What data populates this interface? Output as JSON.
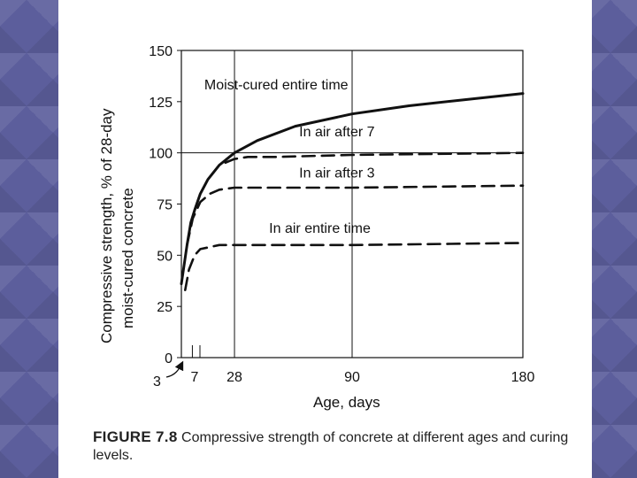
{
  "caption": {
    "label": "FIGURE 7.8",
    "text": "Compressive strength of concrete at different ages and curing levels."
  },
  "chart_data": {
    "type": "line",
    "xlabel": "Age, days",
    "ylabel_line1": "Compressive strength, % of 28-day",
    "ylabel_line2": "moist-cured concrete",
    "xlim": [
      0,
      180
    ],
    "ylim": [
      0,
      150
    ],
    "x_ticks": [
      7,
      28,
      90,
      180
    ],
    "x_tick_labels": [
      "7",
      "28",
      "90",
      "180"
    ],
    "x_minor_ticks": [
      3,
      7
    ],
    "y_ticks": [
      0,
      25,
      50,
      75,
      100,
      125,
      150
    ],
    "y_tick_labels": [
      "0",
      "25",
      "50",
      "75",
      "100",
      "125",
      "150"
    ],
    "gridlines_x": [
      28,
      90
    ],
    "gridlines_y": [
      100
    ],
    "pointer_label": "3",
    "series": [
      {
        "name": "Moist-cured entire time",
        "style": "solid",
        "x": [
          0,
          3,
          5,
          7,
          10,
          14,
          20,
          28,
          40,
          60,
          90,
          120,
          150,
          180
        ],
        "y": [
          36,
          55,
          66,
          72,
          80,
          87,
          94,
          100,
          106,
          113,
          119,
          123,
          126,
          129
        ]
      },
      {
        "name": "In air after 7",
        "style": "dashed",
        "x": [
          7,
          10,
          14,
          20,
          28,
          35,
          50,
          90,
          180
        ],
        "y": [
          72,
          80,
          87,
          94,
          97,
          98,
          98,
          99,
          100
        ]
      },
      {
        "name": "In air after 3",
        "style": "dashed",
        "x": [
          3,
          6,
          10,
          15,
          20,
          28,
          40,
          90,
          180
        ],
        "y": [
          55,
          68,
          76,
          80,
          82,
          83,
          83,
          83,
          84
        ]
      },
      {
        "name": "In air entire time",
        "style": "dashed",
        "x": [
          2,
          4,
          7,
          10,
          15,
          20,
          28,
          60,
          90,
          180
        ],
        "y": [
          33,
          43,
          50,
          53,
          54,
          55,
          55,
          55,
          55,
          56
        ]
      }
    ],
    "annotations": [
      {
        "text": "Moist-cured entire time",
        "x": 50,
        "y": 131
      },
      {
        "text": "In air after 7",
        "x": 82,
        "y": 108
      },
      {
        "text": "In air after 3",
        "x": 82,
        "y": 88
      },
      {
        "text": "In air entire time",
        "x": 73,
        "y": 61
      }
    ]
  }
}
